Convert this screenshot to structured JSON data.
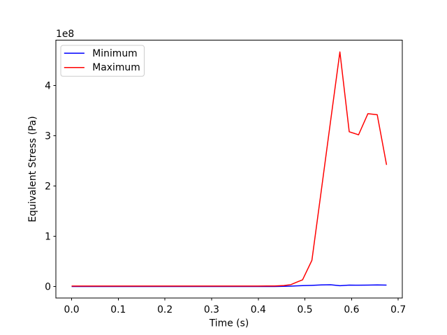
{
  "chart_data": {
    "type": "line",
    "title": "",
    "xlabel": "Time (s)",
    "ylabel": "Equivalent Stress (Pa)",
    "y_offset_text": "1e8",
    "grid": false,
    "background_color": "#ffffff",
    "xlim": [
      -0.03375,
      0.70875
    ],
    "ylim": [
      -23350000,
      490350000
    ],
    "x_ticks": [
      0.0,
      0.1,
      0.2,
      0.3,
      0.4,
      0.5,
      0.6,
      0.7
    ],
    "x_tick_labels": [
      "0.0",
      "0.1",
      "0.2",
      "0.3",
      "0.4",
      "0.5",
      "0.6",
      "0.7"
    ],
    "y_ticks": [
      0,
      100000000,
      200000000,
      300000000,
      400000000
    ],
    "y_tick_labels": [
      "0",
      "1",
      "2",
      "3",
      "4"
    ],
    "legend": {
      "position": "upper left",
      "entries": [
        {
          "label": "Minimum",
          "color": "#0000ff"
        },
        {
          "label": "Maximum",
          "color": "#ff0000"
        }
      ]
    },
    "series": [
      {
        "name": "Minimum",
        "color": "#0000ff",
        "points": [
          [
            0.0,
            -200000
          ],
          [
            0.05,
            -200000
          ],
          [
            0.1,
            -200000
          ],
          [
            0.15,
            -200000
          ],
          [
            0.2,
            -200000
          ],
          [
            0.25,
            -200000
          ],
          [
            0.3,
            -200000
          ],
          [
            0.35,
            -200000
          ],
          [
            0.4,
            -200000
          ],
          [
            0.435,
            -100000
          ],
          [
            0.455,
            200000
          ],
          [
            0.47,
            600000
          ],
          [
            0.481,
            1000000
          ],
          [
            0.495,
            1600000
          ],
          [
            0.515,
            2200000
          ],
          [
            0.535,
            3000000
          ],
          [
            0.555,
            3300000
          ],
          [
            0.575,
            1500000
          ],
          [
            0.595,
            2600000
          ],
          [
            0.615,
            2400000
          ],
          [
            0.635,
            2600000
          ],
          [
            0.655,
            3000000
          ],
          [
            0.675,
            2700000
          ]
        ]
      },
      {
        "name": "Maximum",
        "color": "#ff0000",
        "points": [
          [
            0.0,
            800000
          ],
          [
            0.05,
            800000
          ],
          [
            0.1,
            800000
          ],
          [
            0.15,
            800000
          ],
          [
            0.2,
            800000
          ],
          [
            0.25,
            800000
          ],
          [
            0.3,
            800000
          ],
          [
            0.35,
            800000
          ],
          [
            0.4,
            800000
          ],
          [
            0.435,
            900000
          ],
          [
            0.455,
            1800000
          ],
          [
            0.47,
            3600000
          ],
          [
            0.481,
            7900000
          ],
          [
            0.495,
            13200000
          ],
          [
            0.515,
            52000000
          ],
          [
            0.535,
            190000000
          ],
          [
            0.555,
            329000000
          ],
          [
            0.575,
            467000000
          ],
          [
            0.595,
            308000000
          ],
          [
            0.615,
            302000000
          ],
          [
            0.635,
            344000000
          ],
          [
            0.655,
            342000000
          ],
          [
            0.675,
            242000000
          ]
        ]
      }
    ]
  }
}
